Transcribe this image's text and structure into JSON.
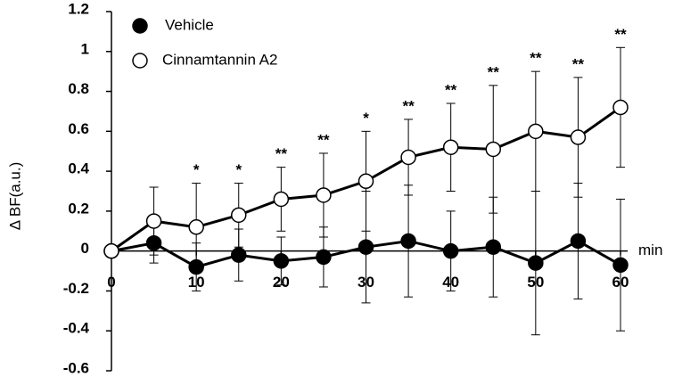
{
  "chart_data": {
    "type": "line",
    "y_label": "Δ BF(a.u.)",
    "x_label": "min",
    "x": [
      0,
      5,
      10,
      15,
      20,
      25,
      30,
      35,
      40,
      45,
      50,
      55,
      60
    ],
    "series": [
      {
        "name": "Vehicle",
        "color": "#000000",
        "fill": "#000000",
        "values": [
          0,
          0.04,
          -0.08,
          -0.02,
          -0.05,
          -0.03,
          0.02,
          0.05,
          0.0,
          0.02,
          -0.06,
          0.05,
          -0.07
        ],
        "errors": [
          0,
          0.1,
          0.12,
          0.13,
          0.12,
          0.15,
          0.28,
          0.28,
          0.2,
          0.25,
          0.36,
          0.29,
          0.33
        ]
      },
      {
        "name": "Cinnamtannin A2",
        "color": "#000000",
        "fill": "#ffffff",
        "values": [
          0,
          0.15,
          0.12,
          0.18,
          0.26,
          0.28,
          0.35,
          0.47,
          0.52,
          0.51,
          0.6,
          0.57,
          0.72
        ],
        "errors": [
          0,
          0.17,
          0.22,
          0.16,
          0.16,
          0.21,
          0.25,
          0.19,
          0.22,
          0.32,
          0.3,
          0.3,
          0.3
        ]
      }
    ],
    "annotations": [
      {
        "x": 10,
        "text": "*"
      },
      {
        "x": 15,
        "text": "*"
      },
      {
        "x": 20,
        "text": "**"
      },
      {
        "x": 25,
        "text": "**"
      },
      {
        "x": 30,
        "text": "*"
      },
      {
        "x": 35,
        "text": "**"
      },
      {
        "x": 40,
        "text": "**"
      },
      {
        "x": 45,
        "text": "**"
      },
      {
        "x": 50,
        "text": "**"
      },
      {
        "x": 55,
        "text": "**"
      },
      {
        "x": 60,
        "text": "**"
      }
    ],
    "xlim": [
      0,
      60
    ],
    "xticks": [
      0,
      10,
      20,
      30,
      40,
      50,
      60
    ],
    "ylim": [
      -0.6,
      1.2
    ],
    "yticks": [
      -0.6,
      -0.4,
      -0.2,
      0,
      0.2,
      0.4,
      0.6,
      0.8,
      1,
      1.2
    ],
    "legend": "top-left"
  }
}
